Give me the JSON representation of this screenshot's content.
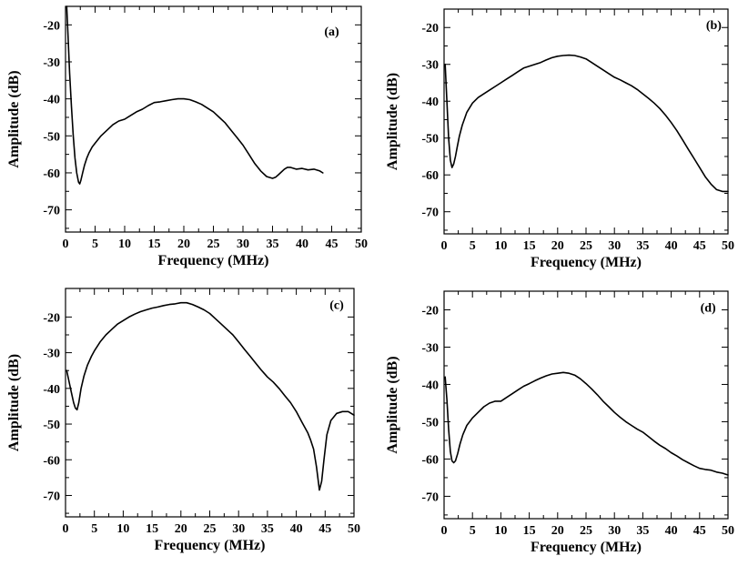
{
  "chart_data": [
    {
      "type": "line",
      "panel_label": "(a)",
      "xlabel": "Frequency (MHz)",
      "ylabel": "Amplitude (dB)",
      "xlim": [
        0,
        50
      ],
      "ylim": [
        -76,
        -15
      ],
      "x_ticks": [
        0,
        5,
        10,
        15,
        20,
        25,
        30,
        35,
        40,
        45,
        50
      ],
      "y_ticks": [
        -20,
        -30,
        -40,
        -50,
        -60,
        -70
      ],
      "grid": false,
      "series": [
        {
          "x": [
            0.2,
            0.4,
            0.7,
            1.0,
            1.3,
            1.6,
            1.9,
            2.2,
            2.4,
            2.6,
            2.9,
            3.2,
            3.6,
            4.0,
            4.5,
            5,
            6,
            7,
            8,
            9,
            10,
            11,
            12,
            13,
            14,
            15,
            16,
            17,
            18,
            19,
            20,
            21,
            22,
            23,
            24,
            25,
            26,
            27,
            28,
            29,
            30,
            31,
            32,
            33,
            34,
            35,
            35.5,
            36,
            37,
            37.5,
            38,
            39,
            40,
            41,
            42,
            43,
            43.5
          ],
          "y": [
            -15,
            -22,
            -33,
            -42,
            -50,
            -56,
            -60,
            -62.5,
            -63,
            -62,
            -60,
            -58,
            -56,
            -54.5,
            -53,
            -52,
            -50,
            -48.5,
            -47,
            -46,
            -45.5,
            -44.5,
            -43.5,
            -42.8,
            -41.8,
            -41,
            -40.8,
            -40.5,
            -40.2,
            -40,
            -40,
            -40.2,
            -40.8,
            -41.5,
            -42.5,
            -43.5,
            -45,
            -46.5,
            -48.5,
            -50.5,
            -52.5,
            -55,
            -57.5,
            -59.5,
            -61,
            -61.5,
            -61.2,
            -60.5,
            -59,
            -58.5,
            -58.5,
            -59,
            -58.8,
            -59.2,
            -59,
            -59.5,
            -60
          ]
        }
      ]
    },
    {
      "type": "line",
      "panel_label": "(b)",
      "xlabel": "Frequency (MHz)",
      "ylabel": "Amplitude (dB)",
      "xlim": [
        0,
        50
      ],
      "ylim": [
        -76,
        -15
      ],
      "x_ticks": [
        0,
        5,
        10,
        15,
        20,
        25,
        30,
        35,
        40,
        45,
        50
      ],
      "y_ticks": [
        -20,
        -30,
        -40,
        -50,
        -60,
        -70
      ],
      "grid": false,
      "series": [
        {
          "x": [
            0.2,
            0.5,
            0.8,
            1.1,
            1.4,
            1.7,
            2.0,
            2.3,
            2.7,
            3.2,
            4,
            5,
            6,
            7,
            8,
            9,
            10,
            11,
            12,
            13,
            14,
            15,
            16,
            17,
            18,
            19,
            20,
            21,
            22,
            23,
            24,
            25,
            26,
            27,
            28,
            29,
            30,
            31,
            32,
            33,
            34,
            35,
            36,
            37,
            38,
            39,
            40,
            41,
            42,
            43,
            44,
            45,
            46,
            47,
            48,
            49,
            50
          ],
          "y": [
            -30,
            -40,
            -50,
            -56,
            -58,
            -57,
            -55,
            -52.5,
            -49.5,
            -46.5,
            -43,
            -40.5,
            -39,
            -38,
            -37,
            -36,
            -35,
            -34,
            -33,
            -32,
            -31,
            -30.5,
            -30,
            -29.5,
            -28.8,
            -28.2,
            -27.8,
            -27.6,
            -27.5,
            -27.6,
            -28,
            -28.5,
            -29.5,
            -30.5,
            -31.5,
            -32.5,
            -33.5,
            -34.2,
            -35,
            -35.8,
            -36.8,
            -38,
            -39.2,
            -40.5,
            -42,
            -43.8,
            -45.8,
            -48,
            -50.5,
            -53,
            -55.5,
            -58,
            -60.5,
            -62.5,
            -64,
            -64.5,
            -64.5
          ]
        }
      ]
    },
    {
      "type": "line",
      "panel_label": "(c)",
      "xlabel": "Frequency (MHz)",
      "ylabel": "Amplitude (dB)",
      "xlim": [
        0,
        50
      ],
      "ylim": [
        -76,
        -12
      ],
      "x_ticks": [
        0,
        5,
        10,
        15,
        20,
        25,
        30,
        35,
        40,
        45,
        50
      ],
      "y_ticks": [
        -20,
        -30,
        -40,
        -50,
        -60,
        -70
      ],
      "grid": false,
      "series": [
        {
          "x": [
            0.2,
            0.6,
            1.0,
            1.4,
            1.7,
            2.0,
            2.3,
            2.7,
            3.2,
            3.8,
            4.5,
            5,
            6,
            7,
            8,
            9,
            10,
            11,
            12,
            13,
            14,
            15,
            16,
            17,
            18,
            19,
            20,
            21,
            22,
            23,
            24,
            25,
            26,
            27,
            28,
            29,
            30,
            31,
            32,
            33,
            34,
            35,
            36,
            37,
            38,
            39,
            40,
            41,
            42,
            42.5,
            43,
            43.5,
            44,
            44.4,
            44.8,
            45.3,
            46,
            47,
            48,
            49,
            50
          ],
          "y": [
            -35,
            -38,
            -41,
            -44,
            -45.5,
            -46,
            -44,
            -40,
            -36.5,
            -33.5,
            -31,
            -29.5,
            -27,
            -25,
            -23.5,
            -22,
            -21,
            -20,
            -19.2,
            -18.5,
            -18,
            -17.5,
            -17.2,
            -16.8,
            -16.5,
            -16.3,
            -16,
            -16,
            -16.5,
            -17.2,
            -18,
            -19,
            -20.5,
            -22,
            -23.5,
            -25,
            -27,
            -29,
            -31,
            -33,
            -35,
            -36.8,
            -38.2,
            -40,
            -42,
            -44,
            -46.5,
            -49.5,
            -52.5,
            -54.5,
            -57,
            -62,
            -68.5,
            -66,
            -60,
            -53,
            -49,
            -47,
            -46.5,
            -46.5,
            -47.5
          ]
        }
      ]
    },
    {
      "type": "line",
      "panel_label": "(d)",
      "xlabel": "Frequency (MHz)",
      "ylabel": "Amplitude (dB)",
      "xlim": [
        0,
        50
      ],
      "ylim": [
        -76,
        -15
      ],
      "x_ticks": [
        0,
        5,
        10,
        15,
        20,
        25,
        30,
        35,
        40,
        45,
        50
      ],
      "y_ticks": [
        -20,
        -30,
        -40,
        -50,
        -60,
        -70
      ],
      "grid": false,
      "series": [
        {
          "x": [
            0.2,
            0.5,
            0.8,
            1.1,
            1.4,
            1.7,
            2.0,
            2.4,
            2.8,
            3.3,
            4,
            5,
            6,
            7,
            8,
            9,
            10,
            11,
            12,
            13,
            14,
            15,
            16,
            17,
            18,
            19,
            20,
            21,
            22,
            23,
            24,
            25,
            26,
            27,
            28,
            29,
            30,
            31,
            32,
            33,
            34,
            35,
            36,
            37,
            38,
            39,
            40,
            41,
            42,
            43,
            44,
            45,
            46,
            47,
            48,
            49,
            50
          ],
          "y": [
            -38,
            -44,
            -52,
            -58,
            -60.5,
            -61,
            -60.5,
            -58.5,
            -56,
            -53.5,
            -51,
            -49,
            -47.5,
            -46,
            -45,
            -44.5,
            -44.5,
            -43.5,
            -42.5,
            -41.5,
            -40.5,
            -39.8,
            -39,
            -38.3,
            -37.7,
            -37.2,
            -37,
            -36.8,
            -37,
            -37.5,
            -38.5,
            -39.8,
            -41.2,
            -42.8,
            -44.5,
            -46,
            -47.5,
            -48.8,
            -50,
            -51,
            -52,
            -52.8,
            -54,
            -55.2,
            -56.3,
            -57.2,
            -58.3,
            -59.2,
            -60.2,
            -61,
            -61.8,
            -62.5,
            -62.8,
            -63,
            -63.5,
            -63.8,
            -64.3
          ]
        }
      ]
    }
  ]
}
